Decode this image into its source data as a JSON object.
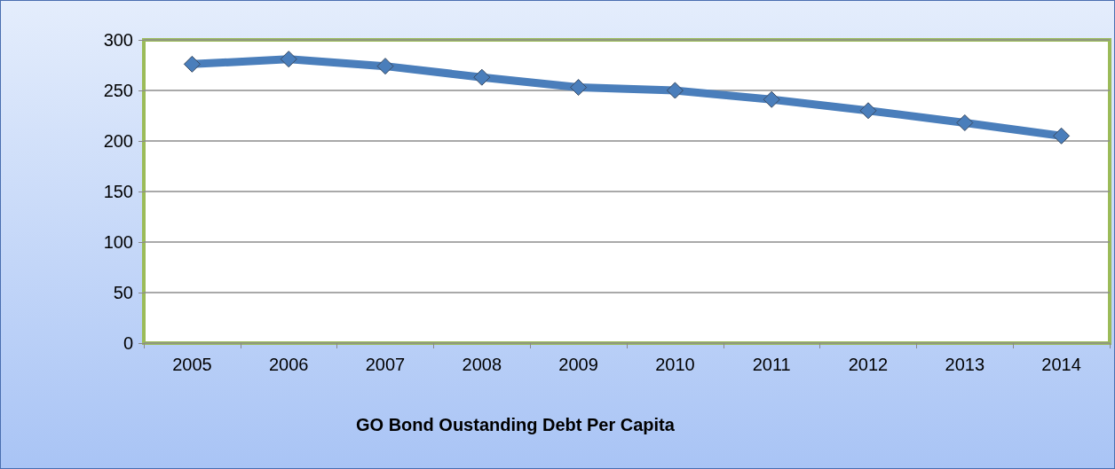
{
  "chart_data": {
    "type": "line",
    "title": "GO Bond Oustanding Debt Per Capita",
    "categories": [
      "2005",
      "2006",
      "2007",
      "2008",
      "2009",
      "2010",
      "2011",
      "2012",
      "2013",
      "2014"
    ],
    "series": [
      {
        "color": "#4a7ebb",
        "values": [
          276,
          281,
          274,
          263,
          253,
          250,
          241,
          230,
          218,
          205
        ]
      }
    ],
    "ylim": [
      0,
      300
    ],
    "yticks": [
      0,
      50,
      100,
      150,
      200,
      250,
      300
    ],
    "grid": "y",
    "marker": "diamond",
    "line_style": "solid"
  }
}
